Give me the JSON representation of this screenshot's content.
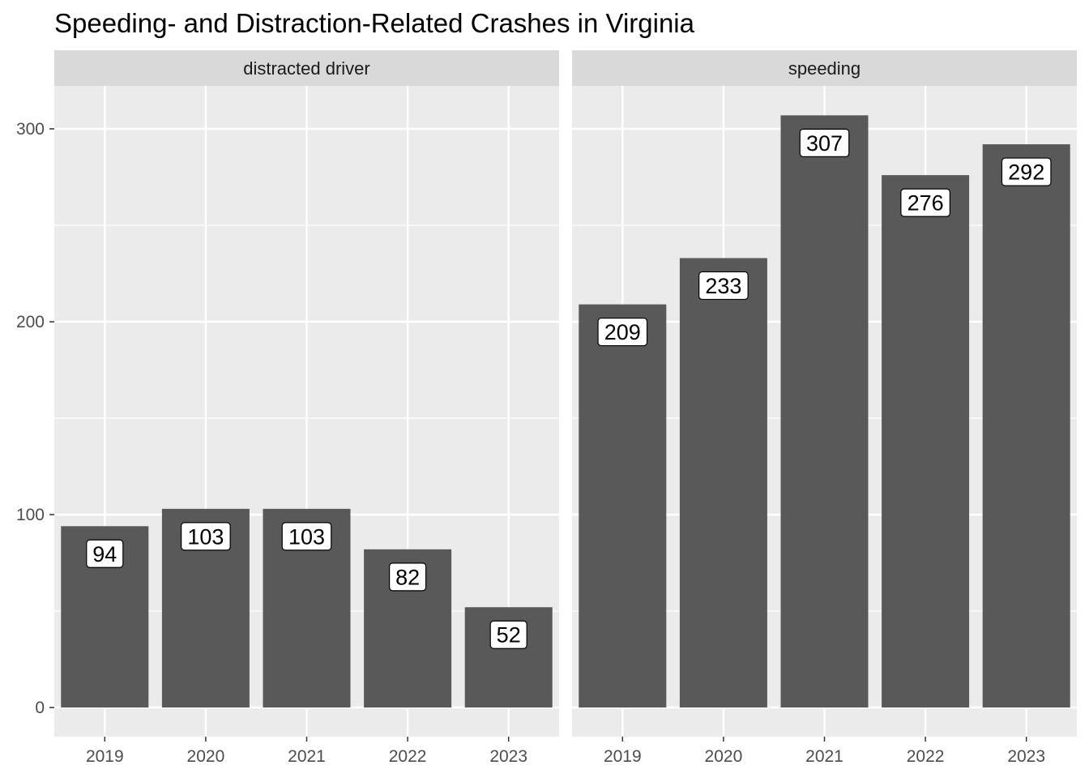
{
  "chart_data": {
    "type": "bar",
    "title": "Speeding- and Distraction-Related Crashes in Virginia",
    "xlabel": "",
    "ylabel": "",
    "ylim": [
      0,
      330
    ],
    "y_ticks": [
      0,
      100,
      200,
      300
    ],
    "categories": [
      "2019",
      "2020",
      "2021",
      "2022",
      "2023"
    ],
    "facets": [
      {
        "name": "distracted driver",
        "values": [
          94,
          103,
          103,
          82,
          52
        ]
      },
      {
        "name": "speeding",
        "values": [
          209,
          233,
          307,
          276,
          292
        ]
      }
    ],
    "grid": true,
    "legend": "none"
  },
  "colors": {
    "bar": "#595959",
    "panel": "#ebebeb",
    "strip": "#d9d9d9",
    "grid_major": "#ffffff",
    "label_fill": "#ffffff",
    "label_border": "#000000"
  }
}
